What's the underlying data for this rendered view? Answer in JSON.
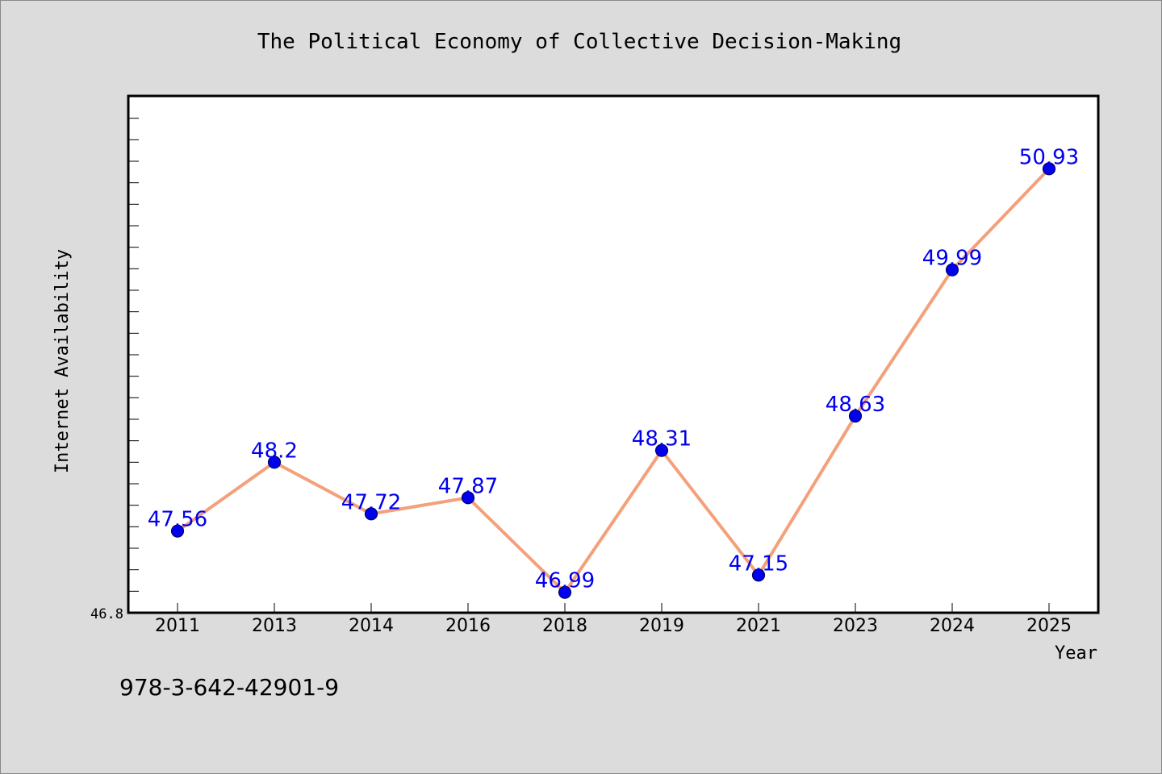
{
  "chart_data": {
    "type": "line",
    "title": "The Political Economy of Collective Decision-Making",
    "xlabel": "Year",
    "ylabel": "Internet Availability",
    "categories": [
      "2011",
      "2013",
      "2014",
      "2016",
      "2018",
      "2019",
      "2021",
      "2023",
      "2024",
      "2025"
    ],
    "series": [
      {
        "values": [
          47.56,
          48.2,
          47.72,
          47.87,
          46.99,
          48.31,
          47.15,
          48.63,
          49.99,
          50.93
        ],
        "labels": [
          "47.56",
          "48.2",
          "47.72",
          "47.87",
          "46.99",
          "48.31",
          "47.15",
          "48.63",
          "49.99",
          "50.93"
        ],
        "line_color": "#f4a07a",
        "marker_color": "#0000ee"
      }
    ],
    "ylim": [
      46.8,
      51.6
    ],
    "ytick_labels": [
      "46.8"
    ],
    "grid": false,
    "legend": "none"
  },
  "footer_text": "978-3-642-42901-9",
  "colors": {
    "background": "#dcdcdc",
    "plot_area": "#ffffff",
    "data_label": "#0000ee"
  }
}
